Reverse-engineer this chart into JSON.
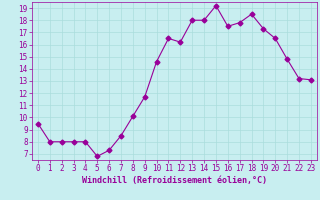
{
  "x": [
    0,
    1,
    2,
    3,
    4,
    5,
    6,
    7,
    8,
    9,
    10,
    11,
    12,
    13,
    14,
    15,
    16,
    17,
    18,
    19,
    20,
    21,
    22,
    23
  ],
  "y": [
    9.5,
    8.0,
    8.0,
    8.0,
    8.0,
    6.8,
    7.3,
    8.5,
    10.1,
    11.7,
    14.6,
    16.5,
    16.2,
    18.0,
    18.0,
    19.2,
    17.5,
    17.8,
    18.5,
    17.3,
    16.5,
    14.8,
    13.2,
    13.1
  ],
  "line_color": "#990099",
  "marker": "D",
  "marker_size": 2.5,
  "bg_color": "#c8eef0",
  "grid_color": "#aadddd",
  "xlabel": "Windchill (Refroidissement éolien,°C)",
  "xlabel_color": "#990099",
  "xlabel_fontsize": 6.0,
  "tick_color": "#990099",
  "tick_fontsize": 5.5,
  "ylim": [
    6.5,
    19.5
  ],
  "yticks": [
    7,
    8,
    9,
    10,
    11,
    12,
    13,
    14,
    15,
    16,
    17,
    18,
    19
  ],
  "xlim": [
    -0.5,
    23.5
  ],
  "xticks": [
    0,
    1,
    2,
    3,
    4,
    5,
    6,
    7,
    8,
    9,
    10,
    11,
    12,
    13,
    14,
    15,
    16,
    17,
    18,
    19,
    20,
    21,
    22,
    23
  ]
}
